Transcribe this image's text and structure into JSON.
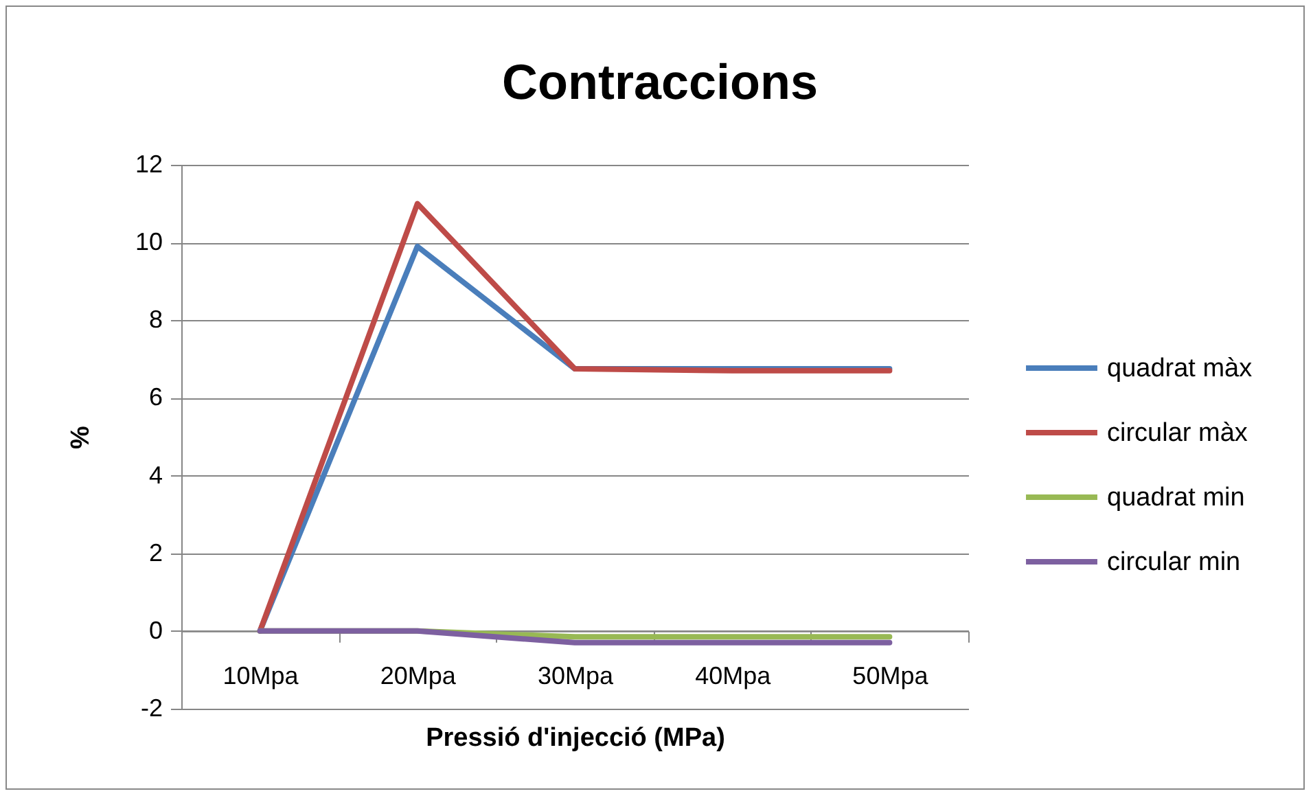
{
  "chart_data": {
    "type": "line",
    "title": "Contraccions",
    "xlabel": "Pressió d'injecció (MPa)",
    "ylabel": "%",
    "categories": [
      "10Mpa",
      "20Mpa",
      "30Mpa",
      "40Mpa",
      "50Mpa"
    ],
    "series": [
      {
        "name": "quadrat màx",
        "color": "#4a7ebb",
        "values": [
          0,
          9.9,
          6.75,
          6.75,
          6.75
        ]
      },
      {
        "name": "circular màx",
        "color": "#be4b48",
        "values": [
          0,
          11,
          6.75,
          6.7,
          6.7
        ]
      },
      {
        "name": "quadrat min",
        "color": "#98b954",
        "values": [
          0,
          0,
          -0.15,
          -0.15,
          -0.15
        ]
      },
      {
        "name": "circular min",
        "color": "#7d60a0",
        "values": [
          0,
          0,
          -0.3,
          -0.3,
          -0.3
        ]
      }
    ],
    "ylim": [
      -2,
      12
    ],
    "yticks": [
      -2,
      0,
      2,
      4,
      6,
      8,
      10,
      12
    ],
    "grid": "y",
    "legend": "right",
    "line_style": "solid"
  }
}
